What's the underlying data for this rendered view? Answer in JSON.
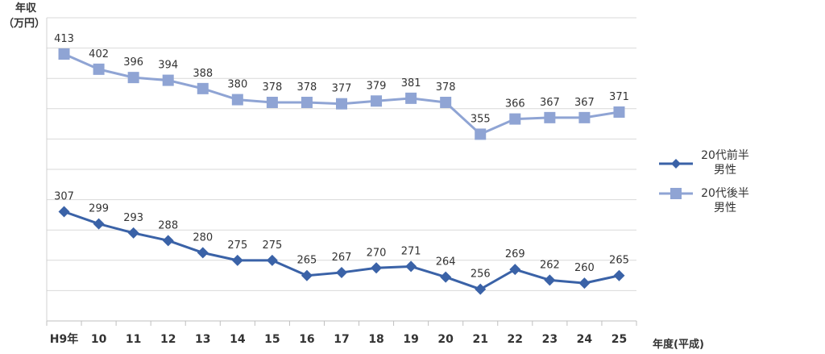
{
  "chart_data": {
    "type": "line",
    "ylabel_line1": "年収",
    "ylabel_line2": "（万円）",
    "xlabel": "年度(平成)",
    "categories": [
      "H9年",
      "10",
      "11",
      "12",
      "13",
      "14",
      "15",
      "16",
      "17",
      "18",
      "19",
      "20",
      "21",
      "22",
      "23",
      "24",
      "25"
    ],
    "grid": true,
    "series": [
      {
        "name_line1": "20代前半",
        "name_line2": "男性",
        "marker": "diamond",
        "color": "#3a62a7",
        "values": [
          307,
          299,
          293,
          288,
          280,
          275,
          275,
          265,
          267,
          270,
          271,
          264,
          256,
          269,
          262,
          260,
          265
        ]
      },
      {
        "name_line1": "20代後半",
        "name_line2": "男性",
        "marker": "square",
        "color": "#8fa4d4",
        "values": [
          413,
          402,
          396,
          394,
          388,
          380,
          378,
          378,
          377,
          379,
          381,
          378,
          355,
          366,
          367,
          367,
          371
        ]
      }
    ]
  }
}
